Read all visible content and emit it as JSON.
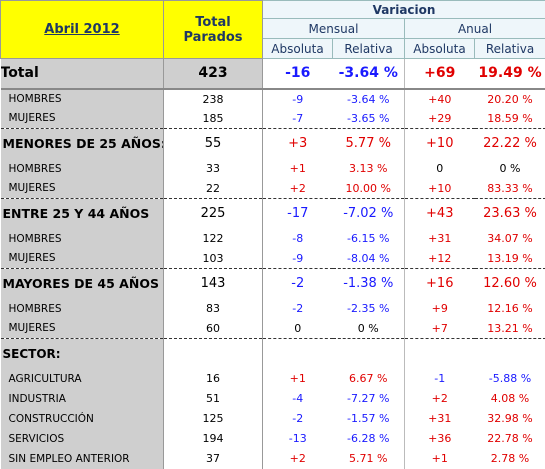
{
  "header": {
    "period": "Abril 2012",
    "total": "Total Parados",
    "variation": "Variacion",
    "monthly": "Mensual",
    "annual": "Anual",
    "columns": [
      "Absoluta",
      "Relativa",
      "Absoluta",
      "Relativa"
    ]
  },
  "total": {
    "label": "Total",
    "cells": [
      "423",
      "-16",
      "-3.64 %",
      "+69",
      "19.49 %"
    ]
  },
  "sections": [
    {
      "label": "MENORES DE 25 AÑOS:",
      "cells": [
        "55",
        "+3",
        "5.77 %",
        "+10",
        "22.22 %"
      ],
      "items": [
        {
          "label": "HOMBRES",
          "cells": [
            "33",
            "+1",
            "3.13 %",
            "0",
            "0 %"
          ]
        },
        {
          "label": "MUJERES",
          "cells": [
            "22",
            "+2",
            "10.00 %",
            "+10",
            "83.33 %"
          ]
        }
      ]
    },
    {
      "label": "ENTRE 25 Y 44 AÑOS",
      "cells": [
        "225",
        "-17",
        "-7.02 %",
        "+43",
        "23.63 %"
      ],
      "items": [
        {
          "label": "HOMBRES",
          "cells": [
            "122",
            "-8",
            "-6.15 %",
            "+31",
            "34.07 %"
          ]
        },
        {
          "label": "MUJERES",
          "cells": [
            "103",
            "-9",
            "-8.04 %",
            "+12",
            "13.19 %"
          ]
        }
      ]
    },
    {
      "label": "MAYORES DE 45 AÑOS",
      "cells": [
        "143",
        "-2",
        "-1.38 %",
        "+16",
        "12.60 %"
      ],
      "items": [
        {
          "label": "HOMBRES",
          "cells": [
            "83",
            "-2",
            "-2.35 %",
            "+9",
            "12.16 %"
          ]
        },
        {
          "label": "MUJERES",
          "cells": [
            "60",
            "0",
            "0 %",
            "+7",
            "13.21 %"
          ]
        }
      ]
    },
    {
      "label": "SECTOR:",
      "items": [
        {
          "label": "AGRICULTURA",
          "cells": [
            "16",
            "+1",
            "6.67 %",
            "-1",
            "-5.88 %"
          ]
        },
        {
          "label": "INDUSTRIA",
          "cells": [
            "51",
            "-4",
            "-7.27 %",
            "+2",
            "4.08 %"
          ]
        },
        {
          "label": "CONSTRUCCIÓN",
          "cells": [
            "125",
            "-2",
            "-1.57 %",
            "+31",
            "32.98 %"
          ]
        },
        {
          "label": "SERVICIOS",
          "cells": [
            "194",
            "-13",
            "-6.28 %",
            "+36",
            "22.78 %"
          ]
        },
        {
          "label": "SIN EMPLEO ANTERIOR",
          "cells": [
            "37",
            "+2",
            "5.71 %",
            "+1",
            "2.78 %"
          ]
        }
      ]
    }
  ],
  "subtotal_items": [
    {
      "label": "HOMBRES",
      "cells": [
        "238",
        "-9",
        "-3.64 %",
        "+40",
        "20.20 %"
      ]
    },
    {
      "label": "MUJERES",
      "cells": [
        "185",
        "-7",
        "-3.65 %",
        "+29",
        "18.59 %"
      ]
    }
  ]
}
